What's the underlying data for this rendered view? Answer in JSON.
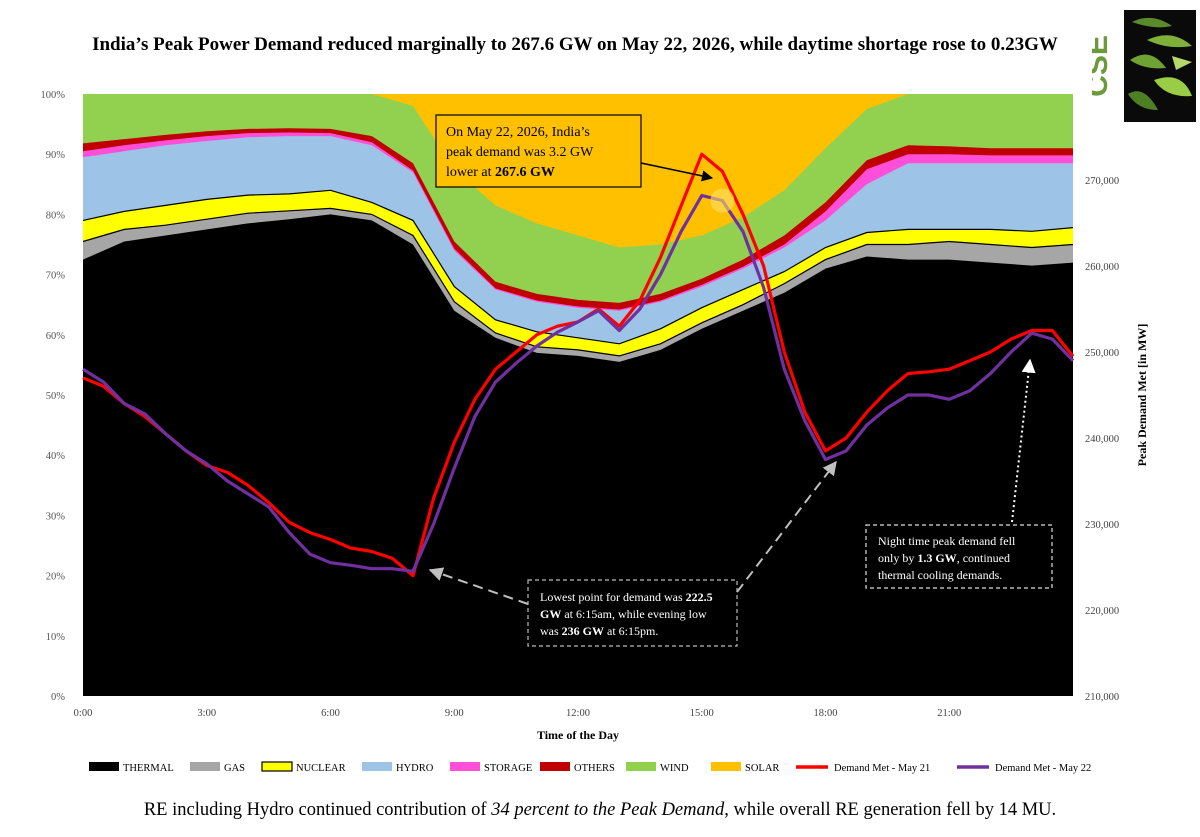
{
  "title": "India’s Peak Power Demand reduced marginally to 267.6 GW on May 22, 2026, while daytime shortage rose to 0.23GW",
  "footer": {
    "part1": "RE including Hydro continued contribution of ",
    "italic": "34 percent to the Peak Demand",
    "part2": ", while overall RE generation fell by 14 MU."
  },
  "logo_text": "CSE",
  "chart_data": {
    "type": "area",
    "xlabel": "Time of the Day",
    "ylabel_right": "Peak Demand Met [in MW]",
    "x_ticks": [
      "0:00",
      "3:00",
      "6:00",
      "9:00",
      "12:00",
      "15:00",
      "18:00",
      "21:00"
    ],
    "y_left_ticks": [
      "0%",
      "10%",
      "20%",
      "30%",
      "40%",
      "50%",
      "60%",
      "70%",
      "80%",
      "90%",
      "100%"
    ],
    "y_left_range": [
      0,
      100
    ],
    "y_right_ticks": [
      "210,000",
      "220,000",
      "230,000",
      "240,000",
      "250,000",
      "260,000",
      "270,000"
    ],
    "y_right_range": [
      210000,
      280000
    ],
    "x_range_hours": [
      0,
      24
    ],
    "stack_hours": [
      0,
      1,
      2,
      3,
      4,
      5,
      6,
      7,
      8,
      9,
      10,
      11,
      12,
      13,
      14,
      15,
      16,
      17,
      18,
      19,
      20,
      21,
      22,
      23,
      24
    ],
    "stack_series": [
      {
        "name": "THERMAL",
        "color": "#000000",
        "cum": [
          72.5,
          75.5,
          76.5,
          77.5,
          78.5,
          79.2,
          80,
          79,
          75,
          64,
          59.5,
          57,
          56.5,
          55.5,
          57.5,
          61,
          64,
          67,
          71,
          73,
          72.5,
          72.5,
          72,
          71.5,
          72
        ]
      },
      {
        "name": "GAS",
        "color": "#a6a6a6",
        "cum": [
          75.5,
          77.5,
          78.2,
          79.2,
          80.2,
          80.6,
          81,
          80,
          76.5,
          65.5,
          60.3,
          58,
          57.5,
          56.5,
          58.5,
          62,
          65,
          68.5,
          72.5,
          75,
          75,
          75.5,
          75,
          74.5,
          75
        ]
      },
      {
        "name": "NUCLEAR",
        "color": "#ffff00",
        "cum": [
          79,
          80.5,
          81.5,
          82.5,
          83.2,
          83.4,
          84,
          82,
          79,
          68,
          62.5,
          60.5,
          59.5,
          58.5,
          61,
          64.5,
          67.5,
          70.5,
          74.5,
          77,
          77.5,
          77.5,
          77.5,
          77.2,
          77.8
        ]
      },
      {
        "name": "HYDRO",
        "color": "#9dc3e6",
        "cum": [
          89.5,
          90.5,
          91.5,
          92.2,
          92.8,
          93,
          93,
          91.5,
          87,
          74,
          67.5,
          65.5,
          64.5,
          64,
          65.5,
          68,
          71,
          74.5,
          79,
          85,
          88.5,
          88.5,
          88.5,
          88.5,
          88.5
        ]
      },
      {
        "name": "STORAGE",
        "color": "#ff4fd8",
        "cum": [
          90.5,
          91.5,
          92.3,
          93,
          93.5,
          93.6,
          93.5,
          92,
          87.3,
          74.3,
          67.7,
          65.7,
          64.7,
          64.2,
          65.7,
          68.3,
          71.3,
          75,
          80.5,
          87.5,
          90,
          90,
          89.8,
          89.8,
          89.8
        ]
      },
      {
        "name": "OTHERS",
        "color": "#c00000",
        "cum": [
          91.8,
          92.5,
          93.2,
          93.8,
          94.2,
          94.3,
          94.2,
          93,
          88.5,
          75.5,
          68.8,
          66.8,
          65.8,
          65.3,
          66.8,
          69.3,
          72.5,
          76.5,
          82,
          89,
          91.5,
          91.3,
          91,
          91,
          91
        ]
      },
      {
        "name": "WIND",
        "color": "#92d050",
        "cum": [
          100,
          100,
          100,
          100,
          100,
          100,
          100,
          100,
          98,
          87.5,
          81.5,
          78.5,
          76.5,
          74.5,
          75,
          76.5,
          79.5,
          84,
          91,
          97.5,
          100,
          100,
          100,
          100,
          100
        ]
      },
      {
        "name": "SOLAR",
        "color": "#ffc000",
        "cum": [
          100,
          100,
          100,
          100,
          100,
          100,
          100,
          100,
          100,
          100,
          100,
          100,
          100,
          100,
          100,
          100,
          100,
          100,
          100,
          100,
          100,
          100,
          100,
          100,
          100
        ]
      }
    ],
    "demand_hours": [
      0,
      0.5,
      1,
      1.5,
      2,
      2.5,
      3,
      3.5,
      4,
      4.5,
      5,
      5.5,
      6,
      6.5,
      7,
      7.5,
      8,
      8.5,
      9,
      9.5,
      10,
      10.5,
      11,
      11.5,
      12,
      12.5,
      13,
      13.5,
      14,
      14.5,
      15,
      15.5,
      16,
      16.5,
      17,
      17.5,
      18,
      18.5,
      19,
      19.5,
      20,
      20.5,
      21,
      21.5,
      22,
      22.5,
      23,
      23.5,
      24
    ],
    "line_series": [
      {
        "name": "Demand Met - May 21",
        "color": "#ff0000",
        "values": [
          247,
          246,
          244,
          242.5,
          240.5,
          238.5,
          236.8,
          236,
          234.5,
          232.5,
          230.2,
          229,
          228.2,
          227.2,
          226.8,
          226,
          224,
          233,
          239.5,
          244.5,
          248,
          250,
          252,
          253,
          253.5,
          255,
          253,
          256,
          261,
          267,
          273,
          271,
          266,
          260,
          250,
          243,
          238.5,
          240,
          243,
          245.5,
          247.5,
          247.7,
          248,
          249,
          250,
          251.5,
          252.5,
          252.5,
          249.5
        ]
      },
      {
        "name": "Demand Met - May 22",
        "color": "#7030a0",
        "values": [
          248,
          246.5,
          244,
          242.8,
          240.5,
          238.5,
          237,
          235,
          233.5,
          232,
          229,
          226.5,
          225.5,
          225.2,
          224.8,
          224.8,
          224.5,
          230,
          236.5,
          242.5,
          246.5,
          248.7,
          250.7,
          252.3,
          253.5,
          254.8,
          252.5,
          255,
          259,
          264,
          268.2,
          267.6,
          264,
          257.5,
          248,
          242,
          237.5,
          238.5,
          241.5,
          243.5,
          245,
          245,
          244.5,
          245.5,
          247.5,
          250,
          252.2,
          251.5,
          249
        ]
      }
    ],
    "annotations": [
      {
        "lines": [
          [
            {
              "t": "On May 22, 2026, India’s"
            }
          ],
          [
            {
              "t": "peak demand was 3.2 GW"
            }
          ],
          [
            {
              "t": "lower at "
            },
            {
              "t": "267.6 GW",
              "b": true
            }
          ]
        ]
      },
      {
        "lines": [
          [
            {
              "t": "Lowest point for demand was "
            },
            {
              "t": "222.5",
              "b": true
            }
          ],
          [
            {
              "t": "GW",
              "b": true
            },
            {
              "t": " at 6:15am, while evening low"
            }
          ],
          [
            {
              "t": "was "
            },
            {
              "t": "236 GW",
              "b": true
            },
            {
              "t": " at 6:15pm."
            }
          ]
        ]
      },
      {
        "lines": [
          [
            {
              "t": "Night time peak demand fell"
            }
          ],
          [
            {
              "t": "only by "
            },
            {
              "t": "1.3 GW",
              "b": true
            },
            {
              "t": ", continued"
            }
          ],
          [
            {
              "t": "thermal cooling demands."
            }
          ]
        ]
      }
    ],
    "legend_position": "bottom"
  }
}
